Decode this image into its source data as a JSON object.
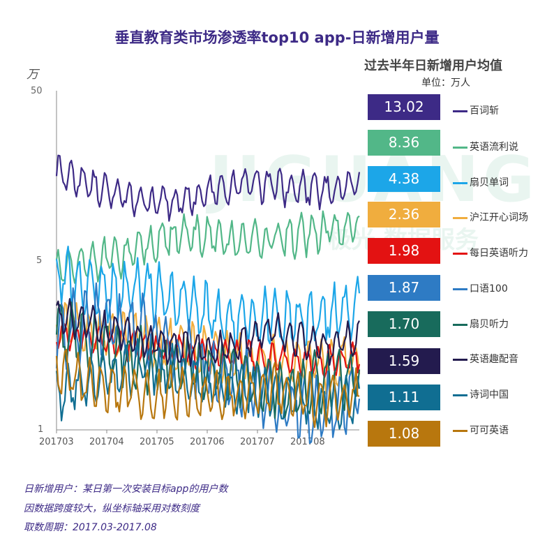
{
  "title": "垂直教育类市场渗透率top10 app-日新增用户量",
  "avg_panel": {
    "heading": "过去半年日新增用户均值",
    "unit": "单位：万人"
  },
  "watermark": {
    "text1": "JIGUANG",
    "text2": "极光 数据服务"
  },
  "footnotes": [
    "日新增用户：某日第一次安装目标app的用户数",
    "因数据跨度较大，纵坐标轴采用对数刻度",
    "取数周期：2017.03-2017.08"
  ],
  "chart_data": {
    "type": "line",
    "title": "垂直教育类市场渗透率top10 app-日新增用户量",
    "ylabel": "万",
    "yscale": "log",
    "ylim": [
      1,
      50
    ],
    "yticks": [
      "50",
      "5",
      "1"
    ],
    "xticks": [
      "201703",
      "201704",
      "201705",
      "201706",
      "201707",
      "201708"
    ],
    "x_range": [
      "2017-03-01",
      "2017-08-31"
    ],
    "series": [
      {
        "name": "百词斩",
        "color": "#3d2a86",
        "average": "13.02",
        "start": 20,
        "trend": [
          20,
          17,
          15,
          14,
          14,
          15,
          17,
          17,
          16,
          16,
          17
        ],
        "amp": 0.07
      },
      {
        "name": "英语流利说",
        "color": "#52b788",
        "average": "8.36",
        "start": 6.5,
        "trend": [
          6.5,
          7,
          7.3,
          8.5,
          9.5,
          9.3,
          8.8,
          9,
          9.5,
          10,
          10.5
        ],
        "amp": 0.08
      },
      {
        "name": "扇贝单词",
        "color": "#1ca6e8",
        "average": "4.38",
        "start": 6.2,
        "trend": [
          6,
          5.2,
          4.8,
          5,
          4.5,
          3.8,
          3.6,
          3.6,
          3.6,
          3.8,
          4.2
        ],
        "amp": 0.12
      },
      {
        "name": "沪江开心词场",
        "color": "#f0ad3e",
        "average": "2.36",
        "start": 3.4,
        "trend": [
          3.4,
          3.1,
          2.9,
          2.8,
          2.6,
          2.4,
          2.3,
          2.2,
          2.2,
          2.1,
          2.3
        ],
        "amp": 0.1
      },
      {
        "name": "每日英语听力",
        "color": "#e31212",
        "average": "1.98",
        "start": 3.2,
        "trend": [
          3.1,
          2.9,
          2.7,
          2.6,
          2.5,
          2.3,
          2.4,
          2.3,
          2.2,
          2.2,
          2.3
        ],
        "amp": 0.06
      },
      {
        "name": "口语100",
        "color": "#2e7bc4",
        "average": "1.87",
        "start": 2.5,
        "trend": [
          2.8,
          3.5,
          3.3,
          3,
          2.4,
          2,
          1.8,
          1.4,
          1.3,
          1.25,
          1.6
        ],
        "amp": 0.14
      },
      {
        "name": "扇贝听力",
        "color": "#186b5c",
        "average": "1.70",
        "start": 4.1,
        "trend": [
          3.2,
          2.8,
          2.4,
          2.2,
          2.1,
          2,
          1.9,
          1.7,
          1.6,
          1.8,
          1.9
        ],
        "amp": 0.12
      },
      {
        "name": "英语趣配音",
        "color": "#231b4e",
        "average": "1.59",
        "start": 3.8,
        "trend": [
          3.7,
          3.4,
          3.1,
          2.8,
          2.6,
          2.5,
          2.6,
          3.2,
          2.9,
          2.6,
          2.9
        ],
        "amp": 0.07
      },
      {
        "name": "诗词中国",
        "color": "#106e92",
        "average": "1.11",
        "start": 1.5,
        "trend": [
          1.5,
          1.7,
          1.9,
          2.1,
          1.9,
          1.7,
          1.6,
          1.5,
          1.5,
          1.3,
          1.5
        ],
        "amp": 0.1
      },
      {
        "name": "可可英语",
        "color": "#b8770e",
        "average": "1.08",
        "start": 2.1,
        "trend": [
          2,
          1.7,
          1.6,
          1.5,
          1.5,
          1.45,
          1.5,
          1.6,
          1.5,
          1.4,
          1.5
        ],
        "amp": 0.1
      }
    ]
  }
}
